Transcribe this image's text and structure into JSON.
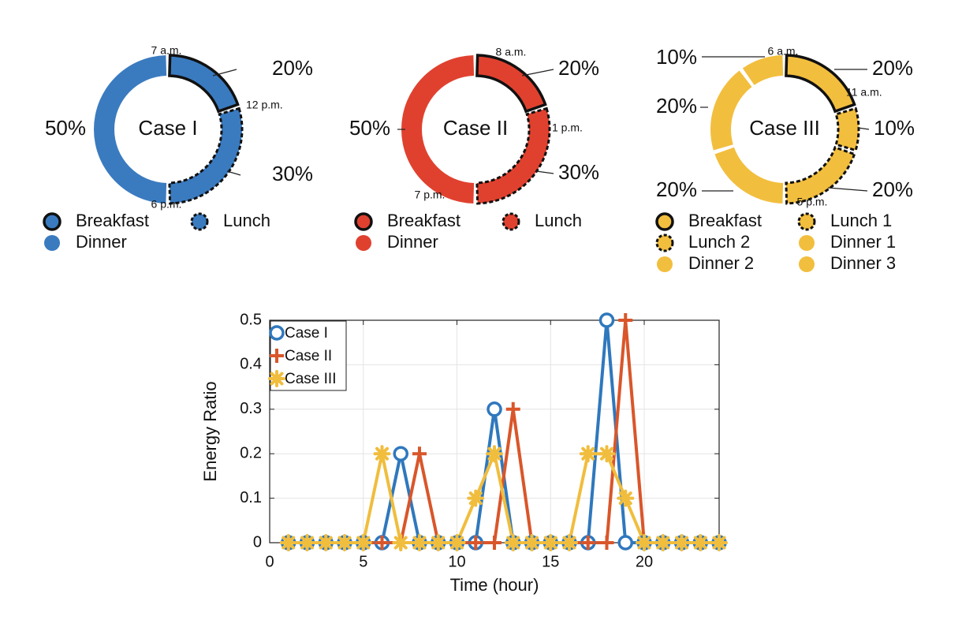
{
  "chart_data": [
    {
      "type": "pie",
      "title": "Case I",
      "color": "#3a7bc0",
      "slices": [
        {
          "name": "Breakfast",
          "value": 20,
          "label": "20%",
          "style": "solid-outline"
        },
        {
          "name": "Lunch",
          "value": 30,
          "label": "30%",
          "style": "dashed-outline"
        },
        {
          "name": "Dinner",
          "value": 50,
          "label": "50%",
          "style": "plain"
        }
      ],
      "time_labels": [
        "7 a.m.",
        "12 p.m.",
        "6 p.m."
      ],
      "legend": [
        {
          "name": "Breakfast",
          "style": "solid-outline"
        },
        {
          "name": "Lunch",
          "style": "dashed-outline"
        },
        {
          "name": "Dinner",
          "style": "plain"
        }
      ]
    },
    {
      "type": "pie",
      "title": "Case II",
      "color": "#e0412f",
      "slices": [
        {
          "name": "Breakfast",
          "value": 20,
          "label": "20%",
          "style": "solid-outline"
        },
        {
          "name": "Lunch",
          "value": 30,
          "label": "30%",
          "style": "dashed-outline"
        },
        {
          "name": "Dinner",
          "value": 50,
          "label": "50%",
          "style": "plain"
        }
      ],
      "time_labels": [
        "8 a.m.",
        "1 p.m.",
        "7 p.m."
      ],
      "legend": [
        {
          "name": "Breakfast",
          "style": "solid-outline"
        },
        {
          "name": "Lunch",
          "style": "dashed-outline"
        },
        {
          "name": "Dinner",
          "style": "plain"
        }
      ]
    },
    {
      "type": "pie",
      "title": "Case III",
      "color": "#f2be3e",
      "slices": [
        {
          "name": "Breakfast",
          "value": 20,
          "label": "20%",
          "style": "solid-outline"
        },
        {
          "name": "Lunch 1",
          "value": 10,
          "label": "10%",
          "style": "dashed-outline"
        },
        {
          "name": "Lunch 2",
          "value": 20,
          "label": "20%",
          "style": "dashed-outline"
        },
        {
          "name": "Dinner 1",
          "value": 20,
          "label": "20%",
          "style": "plain"
        },
        {
          "name": "Dinner 2",
          "value": 20,
          "label": "20%",
          "style": "plain"
        },
        {
          "name": "Dinner 3",
          "value": 10,
          "label": "10%",
          "style": "plain"
        }
      ],
      "time_labels": [
        "6 a.m.",
        "11 a.m.",
        "5 p.m."
      ],
      "legend": [
        {
          "name": "Breakfast",
          "style": "solid-outline"
        },
        {
          "name": "Lunch 1",
          "style": "dashed-outline"
        },
        {
          "name": "Lunch 2",
          "style": "dashed-outline"
        },
        {
          "name": "Dinner 1",
          "style": "plain"
        },
        {
          "name": "Dinner 2",
          "style": "plain"
        },
        {
          "name": "Dinner 3",
          "style": "plain"
        }
      ]
    },
    {
      "type": "line",
      "xlabel": "Time (hour)",
      "ylabel": "Energy Ratio",
      "xlim": [
        0,
        24
      ],
      "ylim": [
        0,
        0.5
      ],
      "xticks": [
        0,
        5,
        10,
        15,
        20
      ],
      "yticks": [
        0,
        0.1,
        0.2,
        0.3,
        0.4,
        0.5
      ],
      "grid": true,
      "legend_position": "top-left",
      "x": [
        1,
        2,
        3,
        4,
        5,
        6,
        7,
        8,
        9,
        10,
        11,
        12,
        13,
        14,
        15,
        16,
        17,
        18,
        19,
        20,
        21,
        22,
        23,
        24
      ],
      "series": [
        {
          "name": "Case I",
          "color": "#2f78bd",
          "marker": "circle",
          "values": [
            0,
            0,
            0,
            0,
            0,
            0,
            0.2,
            0,
            0,
            0,
            0,
            0.3,
            0,
            0,
            0,
            0,
            0,
            0.5,
            0,
            0,
            0,
            0,
            0,
            0
          ]
        },
        {
          "name": "Case II",
          "color": "#d9562a",
          "marker": "plus",
          "values": [
            0,
            0,
            0,
            0,
            0,
            0,
            0,
            0.2,
            0,
            0,
            0,
            0,
            0.3,
            0,
            0,
            0,
            0,
            0,
            0.5,
            0,
            0,
            0,
            0,
            0
          ]
        },
        {
          "name": "Case III",
          "color": "#f0bd3d",
          "marker": "star",
          "values": [
            0,
            0,
            0,
            0,
            0,
            0.2,
            0,
            0,
            0,
            0,
            0.1,
            0.2,
            0,
            0,
            0,
            0,
            0.2,
            0.2,
            0.1,
            0,
            0,
            0,
            0,
            0
          ]
        }
      ]
    }
  ]
}
